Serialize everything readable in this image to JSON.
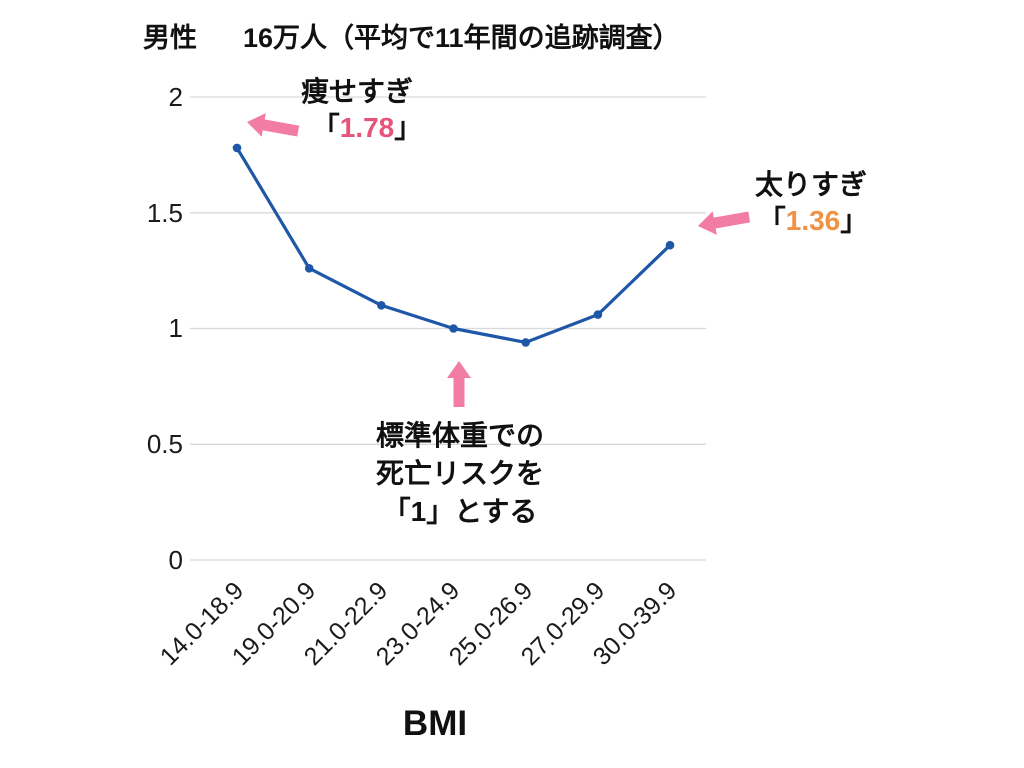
{
  "chart_data": {
    "type": "line",
    "title": {
      "gender": "男性",
      "study": "16万人（平均で11年間の追跡調査）"
    },
    "categories": [
      "14.0-18.9",
      "19.0-20.9",
      "21.0-22.9",
      "23.0-24.9",
      "25.0-26.9",
      "27.0-29.9",
      "30.0-39.9"
    ],
    "values": [
      1.78,
      1.26,
      1.1,
      1.0,
      0.94,
      1.06,
      1.36
    ],
    "xlabel": "BMI",
    "ylabel": "",
    "ylim": [
      0,
      2
    ],
    "yticks": [
      0,
      0.5,
      1,
      1.5,
      2
    ],
    "grid": true,
    "legend": false,
    "line_color": "#1f57a8",
    "marker": "circle"
  },
  "annotations": {
    "underweight": {
      "label": "痩せすぎ",
      "open": "「",
      "value": "1.78",
      "close": "」",
      "value_color": "#e8537a"
    },
    "overweight": {
      "label": "太りすぎ",
      "open": "「",
      "value": "1.36",
      "close": "」",
      "value_color": "#ef9245"
    },
    "standard": {
      "line1": "標準体重での",
      "line2": "死亡リスクを",
      "line3": "「1」とする"
    }
  },
  "colors": {
    "arrow": "#f27ca3",
    "grid": "#d9d9d9",
    "text": "#111111"
  }
}
